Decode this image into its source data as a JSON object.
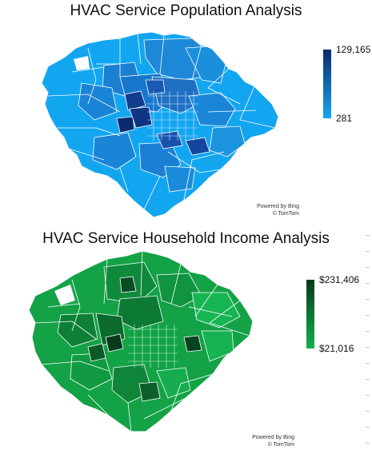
{
  "population_map": {
    "title": "HVAC Service Population Analysis",
    "legend": {
      "max_label": "129,165",
      "min_label": "281"
    },
    "colors": {
      "dark": "#0b2a6e",
      "mid": "#1f74c9",
      "light": "#13a6f0",
      "borders": "#ffffff"
    },
    "attribution": {
      "line1": "Powered by Bing",
      "line2": "© TomTom"
    }
  },
  "income_map": {
    "title": "HVAC Service Household Income Analysis",
    "legend": {
      "max_label": "$231,406",
      "min_label": "$21,016"
    },
    "colors": {
      "dark": "#073b1a",
      "mid": "#0f8a3c",
      "light": "#14b04d",
      "borders": "#ffffff"
    },
    "attribution": {
      "line1": "Powered by Bing",
      "line2": "© TomTom"
    }
  }
}
